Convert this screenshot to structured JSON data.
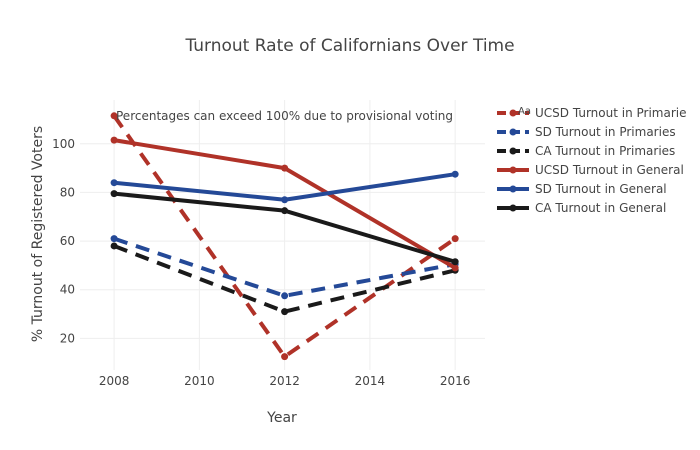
{
  "chart_data": {
    "type": "line",
    "title": "Turnout Rate of Californians Over Time",
    "xlabel": "Year",
    "ylabel": "% Turnout of Registered Voters",
    "xlim": [
      2007.2,
      2016.7
    ],
    "ylim": [
      7,
      118
    ],
    "x": [
      2008,
      2012,
      2016
    ],
    "x_ticks": [
      2008,
      2010,
      2012,
      2014,
      2016
    ],
    "y_ticks": [
      20,
      40,
      60,
      80,
      100
    ],
    "grid": true,
    "legend_position": "right",
    "annotation": {
      "text": "Percentages can exceed 100% due to provisional voting",
      "x": 2008,
      "y": 111.5
    },
    "annotation_marker_label": "Aa",
    "series": [
      {
        "name": "UCSD Turnout in Primaries",
        "legend_label": "UCSD Turnout in Primarie",
        "values": [
          111.5,
          12.5,
          61
        ],
        "color": "#b03228",
        "dash": "dash"
      },
      {
        "name": "SD Turnout in Primaries",
        "legend_label": "SD Turnout in Primaries",
        "values": [
          61,
          37.5,
          50.5
        ],
        "color": "#244997",
        "dash": "dash"
      },
      {
        "name": "CA Turnout in Primaries",
        "legend_label": "CA Turnout in Primaries",
        "values": [
          58,
          31,
          48
        ],
        "color": "#1a1a1a",
        "dash": "dash"
      },
      {
        "name": "UCSD Turnout in General",
        "legend_label": "UCSD Turnout in General",
        "values": [
          101.5,
          90,
          49
        ],
        "color": "#b03228",
        "dash": "solid"
      },
      {
        "name": "SD Turnout in General",
        "legend_label": "SD Turnout in General",
        "values": [
          84,
          77,
          87.5
        ],
        "color": "#244997",
        "dash": "solid"
      },
      {
        "name": "CA Turnout in General",
        "legend_label": "CA Turnout in General",
        "values": [
          79.5,
          72.5,
          51.5
        ],
        "color": "#1a1a1a",
        "dash": "solid"
      }
    ]
  }
}
